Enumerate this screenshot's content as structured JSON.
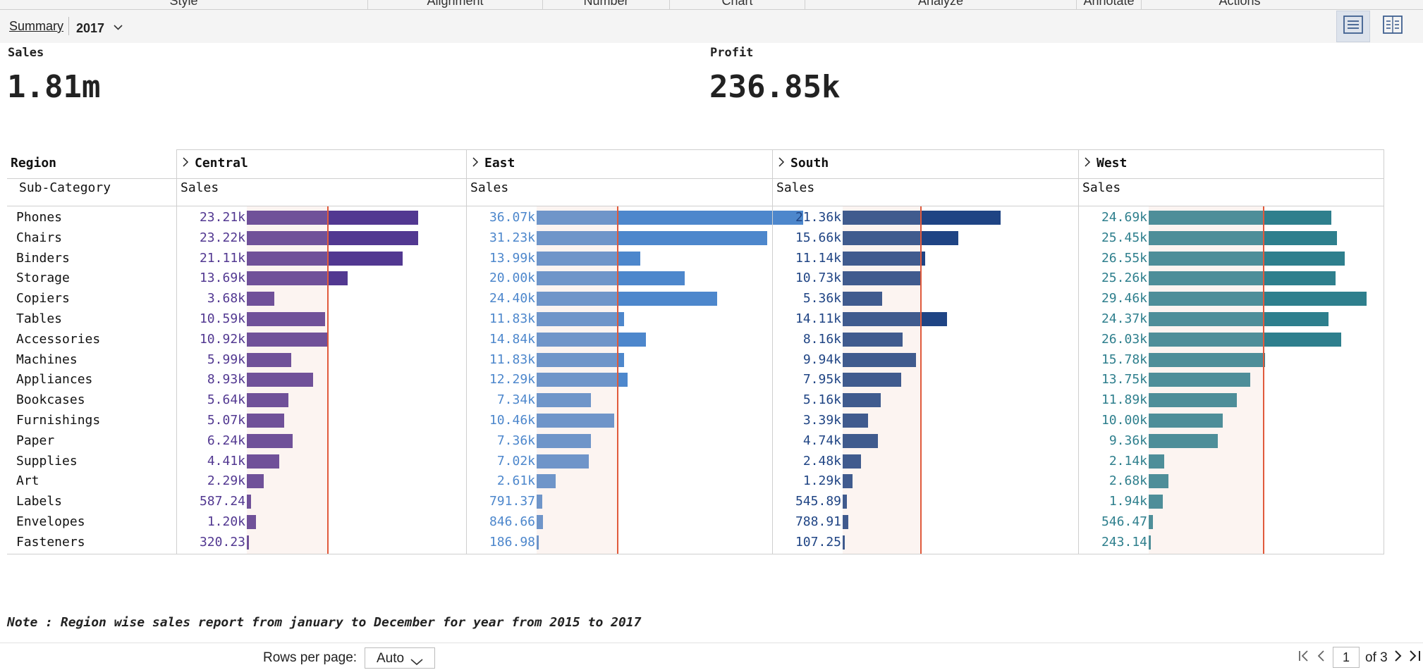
{
  "ribbon": {
    "tabs": [
      "Style",
      "Alignment",
      "Number",
      "Chart",
      "Analyze",
      "Annotate",
      "Actions"
    ]
  },
  "toolbar": {
    "summary_label": "Summary",
    "year_value": "2017",
    "views": [
      "list-view-icon",
      "grid-view-icon"
    ]
  },
  "kpis": [
    {
      "label": "Sales",
      "value": "1.81m"
    },
    {
      "label": "Profit",
      "value": "236.85k"
    }
  ],
  "table": {
    "row_header": "Region",
    "sub_header": "Sub-Category",
    "measure_label": "Sales",
    "regions": [
      {
        "name": "Central",
        "color": "#523891",
        "light": "#705199",
        "ref_value": 11000
      },
      {
        "name": "East",
        "color": "#4d87cc",
        "light": "#6f95c9",
        "ref_value": 11000
      },
      {
        "name": "South",
        "color": "#1f4484",
        "light": "#405b8e",
        "ref_value": 10600
      },
      {
        "name": "West",
        "color": "#2e7f8d",
        "light": "#4e8e99",
        "ref_value": 15600
      }
    ],
    "max_value": 31500,
    "subcategories": [
      "Phones",
      "Chairs",
      "Binders",
      "Storage",
      "Copiers",
      "Tables",
      "Accessories",
      "Machines",
      "Appliances",
      "Bookcases",
      "Furnishings",
      "Paper",
      "Supplies",
      "Art",
      "Labels",
      "Envelopes",
      "Fasteners"
    ],
    "labels": [
      [
        "23.21k",
        "23.22k",
        "21.11k",
        "13.69k",
        "3.68k",
        "10.59k",
        "10.92k",
        "5.99k",
        "8.93k",
        "5.64k",
        "5.07k",
        "6.24k",
        "4.41k",
        "2.29k",
        "587.24",
        "1.20k",
        "320.23"
      ],
      [
        "36.07k",
        "31.23k",
        "13.99k",
        "20.00k",
        "24.40k",
        "11.83k",
        "14.84k",
        "11.83k",
        "12.29k",
        "7.34k",
        "10.46k",
        "7.36k",
        "7.02k",
        "2.61k",
        "791.37",
        "846.66",
        "186.98"
      ],
      [
        "21.36k",
        "15.66k",
        "11.14k",
        "10.73k",
        "5.36k",
        "14.11k",
        "8.16k",
        "9.94k",
        "7.95k",
        "5.16k",
        "3.39k",
        "4.74k",
        "2.48k",
        "1.29k",
        "545.89",
        "788.91",
        "107.25"
      ],
      [
        "24.69k",
        "25.45k",
        "26.55k",
        "25.26k",
        "29.46k",
        "24.37k",
        "26.03k",
        "15.78k",
        "13.75k",
        "11.89k",
        "10.00k",
        "9.36k",
        "2.14k",
        "2.68k",
        "1.94k",
        "546.47",
        "243.14"
      ]
    ],
    "values": [
      [
        23210,
        23220,
        21110,
        13690,
        3680,
        10590,
        10920,
        5990,
        8930,
        5640,
        5070,
        6240,
        4410,
        2290,
        587.24,
        1200,
        320.23
      ],
      [
        36070,
        31230,
        13990,
        20000,
        24400,
        11830,
        14840,
        11830,
        12290,
        7340,
        10460,
        7360,
        7020,
        2610,
        791.37,
        846.66,
        186.98
      ],
      [
        21360,
        15660,
        11140,
        10730,
        5360,
        14110,
        8160,
        9940,
        7950,
        5160,
        3390,
        4740,
        2480,
        1290,
        545.89,
        788.91,
        107.25
      ],
      [
        24690,
        25450,
        26550,
        25260,
        29460,
        24370,
        26030,
        15780,
        13750,
        11890,
        10000,
        9360,
        2140,
        2680,
        1940,
        546.47,
        243.14
      ]
    ]
  },
  "note": "Note : Region wise sales report from january to December for year from 2015 to 2017",
  "pager": {
    "rows_per_page_label": "Rows per page:",
    "rows_per_page_value": "Auto",
    "page": "1",
    "of_label": "of 3"
  }
}
